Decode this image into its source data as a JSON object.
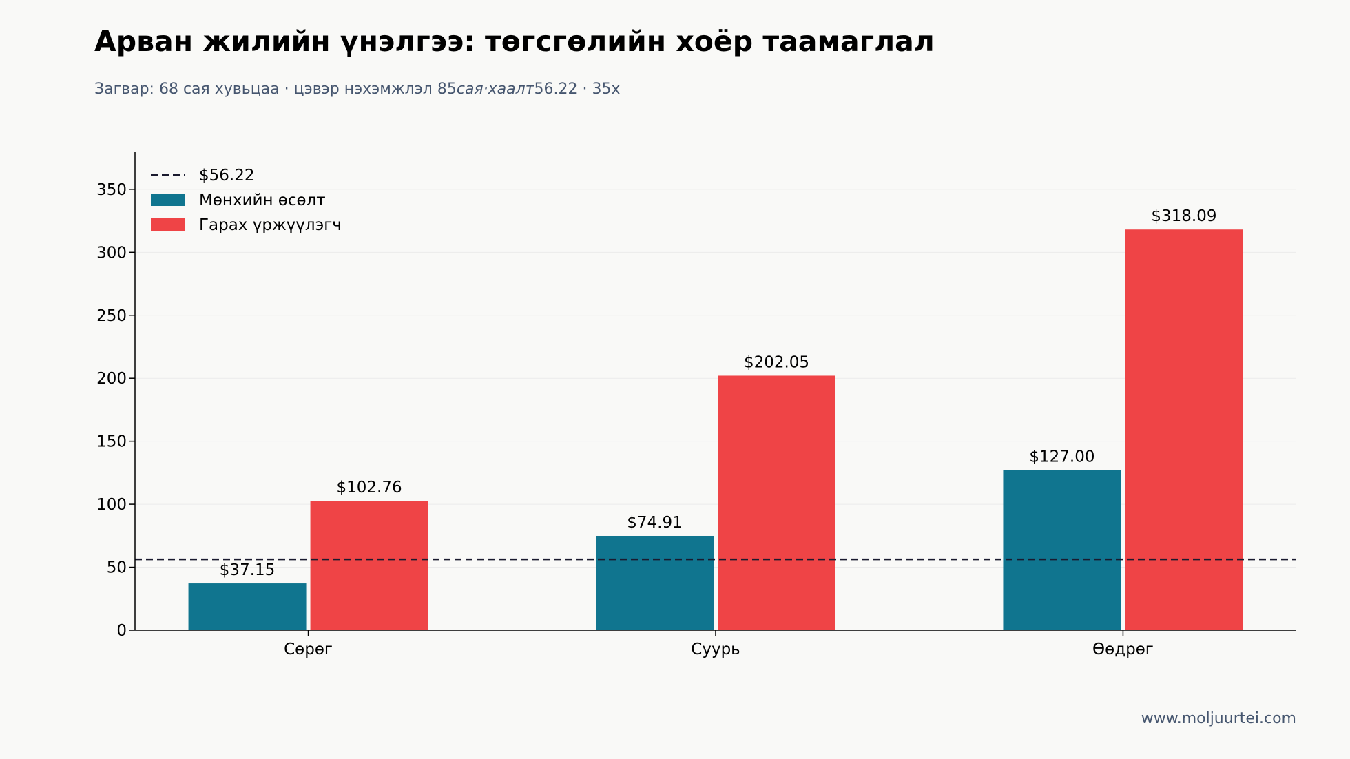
{
  "chart_data": {
    "type": "bar",
    "title": "Арван жилийн үнэлгээ: төгсгөлийн хоёр таамаглал",
    "subtitle": {
      "part1": "Загвар: 68 сая хувьцаа · цэвэр нэхэмжлэл 85",
      "part2": "сая·хаалт",
      "part3": "56.22 · 35x"
    },
    "categories": [
      "Сөрөг",
      "Суурь",
      "Өөдрөг"
    ],
    "series": [
      {
        "name": "Мөнхийн өсөлт",
        "color": "#10758f",
        "values": [
          37.15,
          74.91,
          127.0
        ],
        "labels": [
          "$37.15",
          "$74.91",
          "$127.00"
        ]
      },
      {
        "name": "Гарах үржүүлэгч",
        "color": "#ef4446",
        "values": [
          102.76,
          202.05,
          318.09
        ],
        "labels": [
          "$102.76",
          "$202.05",
          "$318.09"
        ]
      }
    ],
    "reference_line": {
      "value": 56.22,
      "label": "$56.22",
      "color": "#1a1a2e",
      "style": "dashed"
    },
    "ylim": [
      0,
      380
    ],
    "yticks": [
      0,
      50,
      100,
      150,
      200,
      250,
      300,
      350
    ],
    "xlabel": "",
    "ylabel": "",
    "grid": "horizontal",
    "legend_position": "top-left"
  },
  "footer": {
    "watermark": "www.moljuurtei.com"
  },
  "colors": {
    "background": "#f9f9f7",
    "gridline": "#ebebeb",
    "axis": "#000000",
    "subtitle_text": "#46566f"
  }
}
